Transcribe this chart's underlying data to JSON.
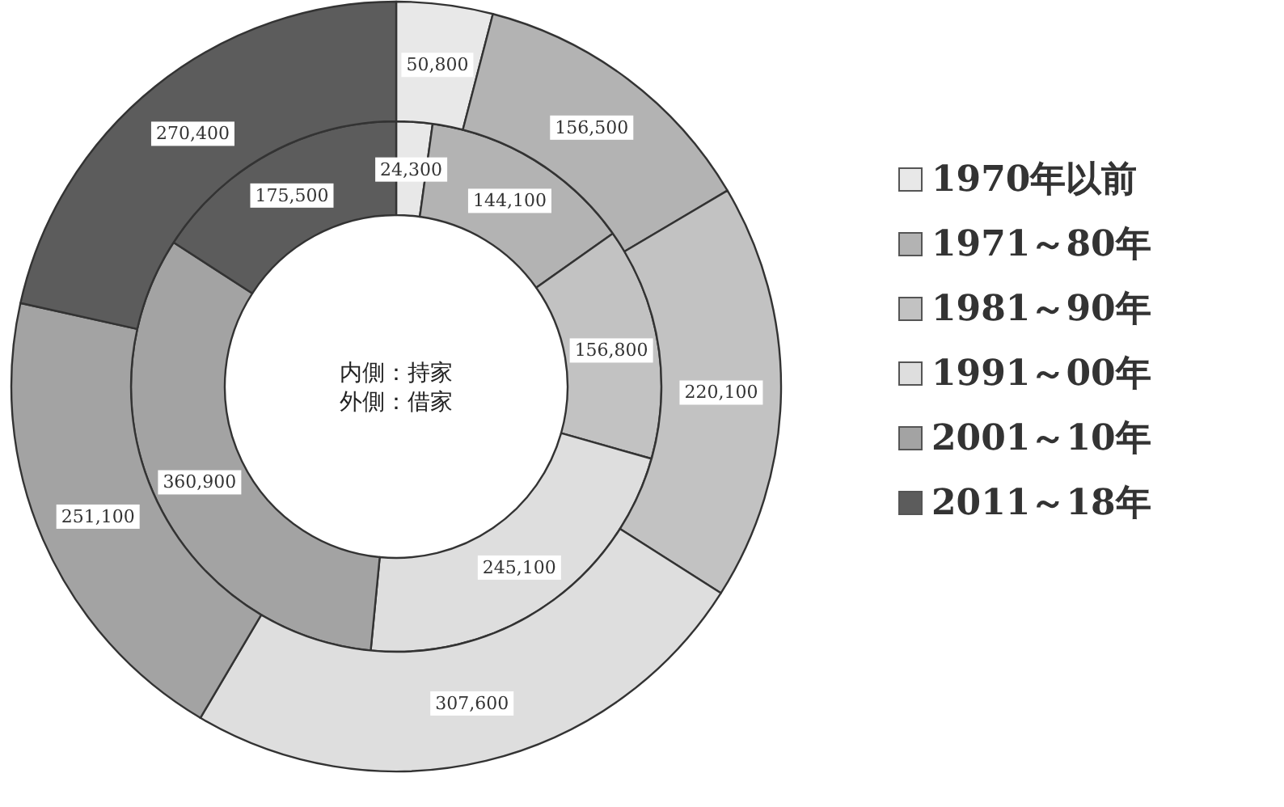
{
  "chart_data": {
    "type": "donut",
    "categories": [
      "1970年以前",
      "1971～80年",
      "1981～90年",
      "1991～00年",
      "2001～10年",
      "2011～18年"
    ],
    "colors": [
      "#e8e8e8",
      "#b3b3b3",
      "#c2c2c2",
      "#dedede",
      "#a3a3a3",
      "#5c5c5c"
    ],
    "series": [
      {
        "values": [
          24300,
          144100,
          156800,
          245100,
          360900,
          175500
        ],
        "value_labels": [
          "24,300",
          "144,100",
          "156,800",
          "245,100",
          "360,900",
          "175,500"
        ]
      },
      {
        "values": [
          50800,
          156500,
          220100,
          307600,
          251100,
          270400
        ],
        "value_labels": [
          "50,800",
          "156,500",
          "220,100",
          "307,600",
          "251,100",
          "270,400"
        ]
      }
    ],
    "legend": "right",
    "annotations": [
      "内側：持家",
      "外側：借家"
    ]
  }
}
